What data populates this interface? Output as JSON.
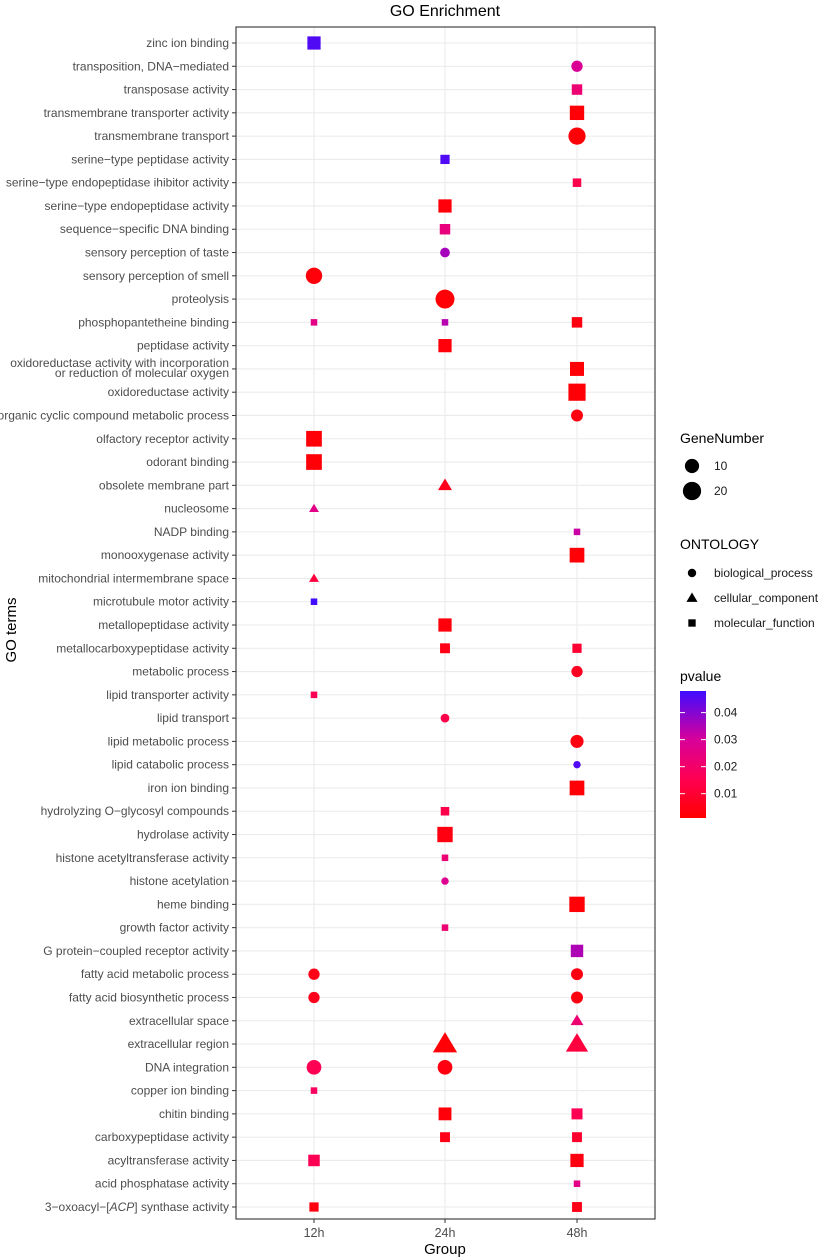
{
  "chart_data": {
    "type": "scatter",
    "title": "GO Enrichment",
    "xlabel": "Group",
    "ylabel": "GO terms",
    "groups": [
      "12h",
      "24h",
      "48h"
    ],
    "terms": [
      "zinc ion binding",
      "transposition, DNA−mediated",
      "transposase activity",
      "transmembrane transporter activity",
      "transmembrane transport",
      "serine−type peptidase activity",
      "serine−type endopeptidase ihibitor activity",
      "serine−type endopeptidase activity",
      "sequence−specific DNA binding",
      "sensory perception of taste",
      "sensory perception of smell",
      "proteolysis",
      "phosphopantetheine binding",
      "peptidase activity",
      "oxidoreductase activity with incorporation or reduction of molecular oxygen",
      "oxidoreductase activity",
      "organic cyclic compound metabolic process",
      "olfactory receptor activity",
      "odorant binding",
      "obsolete membrane part",
      "nucleosome",
      "NADP binding",
      "monooxygenase activity",
      "mitochondrial intermembrane space",
      "microtubule motor activity",
      "metallopeptidase activity",
      "metallocarboxypeptidase activity",
      "metabolic process",
      "lipid transporter activity",
      "lipid transport",
      "lipid metabolic process",
      "lipid catabolic process",
      "iron ion binding",
      "hydrolyzing O−glycosyl compounds",
      "hydrolase activity",
      "histone acetyltransferase activity",
      "histone acetylation",
      "heme binding",
      "growth factor activity",
      "G protein−coupled receptor activity",
      "fatty acid metabolic process",
      "fatty acid biosynthetic process",
      "extracellular space",
      "extracellular region",
      "DNA integration",
      "copper ion binding",
      "chitin binding",
      "carboxypeptidase activity",
      "acyltransferase activity",
      "acid phosphatase activity",
      "3−oxoacyl−[ACP] synthase activity"
    ],
    "points": [
      {
        "term": 0,
        "group": "12h",
        "ontology": "molecular_function",
        "genes": 12,
        "pvalue": 0.046
      },
      {
        "term": 1,
        "group": "48h",
        "ontology": "biological_process",
        "genes": 5,
        "pvalue": 0.029
      },
      {
        "term": 2,
        "group": "48h",
        "ontology": "molecular_function",
        "genes": 6,
        "pvalue": 0.022
      },
      {
        "term": 3,
        "group": "48h",
        "ontology": "molecular_function",
        "genes": 15,
        "pvalue": 0.002
      },
      {
        "term": 4,
        "group": "48h",
        "ontology": "biological_process",
        "genes": 17,
        "pvalue": 0.002
      },
      {
        "term": 5,
        "group": "24h",
        "ontology": "molecular_function",
        "genes": 4,
        "pvalue": 0.046
      },
      {
        "term": 6,
        "group": "48h",
        "ontology": "molecular_function",
        "genes": 3,
        "pvalue": 0.014
      },
      {
        "term": 7,
        "group": "24h",
        "ontology": "molecular_function",
        "genes": 12,
        "pvalue": 0.003
      },
      {
        "term": 8,
        "group": "24h",
        "ontology": "molecular_function",
        "genes": 6,
        "pvalue": 0.024
      },
      {
        "term": 9,
        "group": "24h",
        "ontology": "biological_process",
        "genes": 3,
        "pvalue": 0.036
      },
      {
        "term": 10,
        "group": "12h",
        "ontology": "biological_process",
        "genes": 15,
        "pvalue": 0.003
      },
      {
        "term": 11,
        "group": "24h",
        "ontology": "biological_process",
        "genes": 22,
        "pvalue": 0.002
      },
      {
        "term": 12,
        "group": "12h",
        "ontology": "molecular_function",
        "genes": 1,
        "pvalue": 0.026
      },
      {
        "term": 12,
        "group": "24h",
        "ontology": "molecular_function",
        "genes": 1,
        "pvalue": 0.034
      },
      {
        "term": 12,
        "group": "48h",
        "ontology": "molecular_function",
        "genes": 6,
        "pvalue": 0.004
      },
      {
        "term": 13,
        "group": "24h",
        "ontology": "molecular_function",
        "genes": 12,
        "pvalue": 0.003
      },
      {
        "term": 14,
        "group": "48h",
        "ontology": "molecular_function",
        "genes": 14,
        "pvalue": 0.002
      },
      {
        "term": 15,
        "group": "48h",
        "ontology": "molecular_function",
        "genes": 24,
        "pvalue": 0.002
      },
      {
        "term": 16,
        "group": "48h",
        "ontology": "biological_process",
        "genes": 6,
        "pvalue": 0.004
      },
      {
        "term": 17,
        "group": "12h",
        "ontology": "molecular_function",
        "genes": 19,
        "pvalue": 0.002
      },
      {
        "term": 18,
        "group": "12h",
        "ontology": "molecular_function",
        "genes": 19,
        "pvalue": 0.002
      },
      {
        "term": 19,
        "group": "24h",
        "ontology": "cellular_component",
        "genes": 4,
        "pvalue": 0.006
      },
      {
        "term": 20,
        "group": "12h",
        "ontology": "cellular_component",
        "genes": 1,
        "pvalue": 0.026
      },
      {
        "term": 21,
        "group": "48h",
        "ontology": "molecular_function",
        "genes": 1,
        "pvalue": 0.032
      },
      {
        "term": 22,
        "group": "48h",
        "ontology": "molecular_function",
        "genes": 16,
        "pvalue": 0.002
      },
      {
        "term": 23,
        "group": "12h",
        "ontology": "cellular_component",
        "genes": 1,
        "pvalue": 0.012
      },
      {
        "term": 24,
        "group": "12h",
        "ontology": "molecular_function",
        "genes": 1,
        "pvalue": 0.048
      },
      {
        "term": 25,
        "group": "24h",
        "ontology": "molecular_function",
        "genes": 12,
        "pvalue": 0.003
      },
      {
        "term": 26,
        "group": "24h",
        "ontology": "molecular_function",
        "genes": 5,
        "pvalue": 0.005
      },
      {
        "term": 26,
        "group": "48h",
        "ontology": "molecular_function",
        "genes": 4,
        "pvalue": 0.01
      },
      {
        "term": 27,
        "group": "48h",
        "ontology": "biological_process",
        "genes": 5,
        "pvalue": 0.007
      },
      {
        "term": 28,
        "group": "12h",
        "ontology": "molecular_function",
        "genes": 1,
        "pvalue": 0.016
      },
      {
        "term": 29,
        "group": "24h",
        "ontology": "biological_process",
        "genes": 2,
        "pvalue": 0.014
      },
      {
        "term": 30,
        "group": "48h",
        "ontology": "biological_process",
        "genes": 8,
        "pvalue": 0.004
      },
      {
        "term": 31,
        "group": "48h",
        "ontology": "biological_process",
        "genes": 1,
        "pvalue": 0.046
      },
      {
        "term": 32,
        "group": "48h",
        "ontology": "molecular_function",
        "genes": 16,
        "pvalue": 0.002
      },
      {
        "term": 33,
        "group": "24h",
        "ontology": "molecular_function",
        "genes": 3,
        "pvalue": 0.014
      },
      {
        "term": 34,
        "group": "24h",
        "ontology": "molecular_function",
        "genes": 18,
        "pvalue": 0.004
      },
      {
        "term": 35,
        "group": "24h",
        "ontology": "molecular_function",
        "genes": 1,
        "pvalue": 0.022
      },
      {
        "term": 36,
        "group": "24h",
        "ontology": "biological_process",
        "genes": 1,
        "pvalue": 0.028
      },
      {
        "term": 37,
        "group": "48h",
        "ontology": "molecular_function",
        "genes": 18,
        "pvalue": 0.002
      },
      {
        "term": 38,
        "group": "24h",
        "ontology": "molecular_function",
        "genes": 1,
        "pvalue": 0.022
      },
      {
        "term": 39,
        "group": "48h",
        "ontology": "molecular_function",
        "genes": 10,
        "pvalue": 0.035
      },
      {
        "term": 40,
        "group": "12h",
        "ontology": "biological_process",
        "genes": 5,
        "pvalue": 0.005
      },
      {
        "term": 40,
        "group": "48h",
        "ontology": "biological_process",
        "genes": 6,
        "pvalue": 0.004
      },
      {
        "term": 41,
        "group": "12h",
        "ontology": "biological_process",
        "genes": 5,
        "pvalue": 0.006
      },
      {
        "term": 41,
        "group": "48h",
        "ontology": "biological_process",
        "genes": 6,
        "pvalue": 0.004
      },
      {
        "term": 42,
        "group": "48h",
        "ontology": "cellular_component",
        "genes": 3,
        "pvalue": 0.022
      },
      {
        "term": 43,
        "group": "24h",
        "ontology": "cellular_component",
        "genes": 20,
        "pvalue": 0.002
      },
      {
        "term": 43,
        "group": "48h",
        "ontology": "cellular_component",
        "genes": 16,
        "pvalue": 0.012
      },
      {
        "term": 44,
        "group": "12h",
        "ontology": "biological_process",
        "genes": 11,
        "pvalue": 0.016
      },
      {
        "term": 44,
        "group": "24h",
        "ontology": "biological_process",
        "genes": 11,
        "pvalue": 0.004
      },
      {
        "term": 45,
        "group": "12h",
        "ontology": "molecular_function",
        "genes": 1,
        "pvalue": 0.018
      },
      {
        "term": 46,
        "group": "24h",
        "ontology": "molecular_function",
        "genes": 11,
        "pvalue": 0.003
      },
      {
        "term": 46,
        "group": "48h",
        "ontology": "molecular_function",
        "genes": 7,
        "pvalue": 0.016
      },
      {
        "term": 47,
        "group": "24h",
        "ontology": "molecular_function",
        "genes": 5,
        "pvalue": 0.005
      },
      {
        "term": 47,
        "group": "48h",
        "ontology": "molecular_function",
        "genes": 5,
        "pvalue": 0.009
      },
      {
        "term": 48,
        "group": "12h",
        "ontology": "molecular_function",
        "genes": 8,
        "pvalue": 0.016
      },
      {
        "term": 48,
        "group": "48h",
        "ontology": "molecular_function",
        "genes": 12,
        "pvalue": 0.004
      },
      {
        "term": 49,
        "group": "48h",
        "ontology": "molecular_function",
        "genes": 1,
        "pvalue": 0.026
      },
      {
        "term": 50,
        "group": "12h",
        "ontology": "molecular_function",
        "genes": 4,
        "pvalue": 0.004
      },
      {
        "term": 50,
        "group": "48h",
        "ontology": "molecular_function",
        "genes": 5,
        "pvalue": 0.005
      }
    ],
    "size_legend": {
      "title": "GeneNumber",
      "values": [
        10,
        20
      ]
    },
    "shape_legend": {
      "title": "ONTOLOGY",
      "values": [
        "biological_process",
        "cellular_component",
        "molecular_function"
      ]
    },
    "color_legend": {
      "title": "pvalue",
      "ticks": [
        0.01,
        0.02,
        0.03,
        0.04
      ],
      "tick_labels": [
        "0.01",
        "0.02",
        "0.03",
        "0.04"
      ],
      "range": [
        0.001,
        0.048
      ],
      "low_color": "#FF0000",
      "high_color": "#3F0CFF"
    },
    "legend_position": "right",
    "grid": true
  },
  "theme": {
    "grid_color": "#EBEBEB",
    "panel_border": "#333333"
  }
}
